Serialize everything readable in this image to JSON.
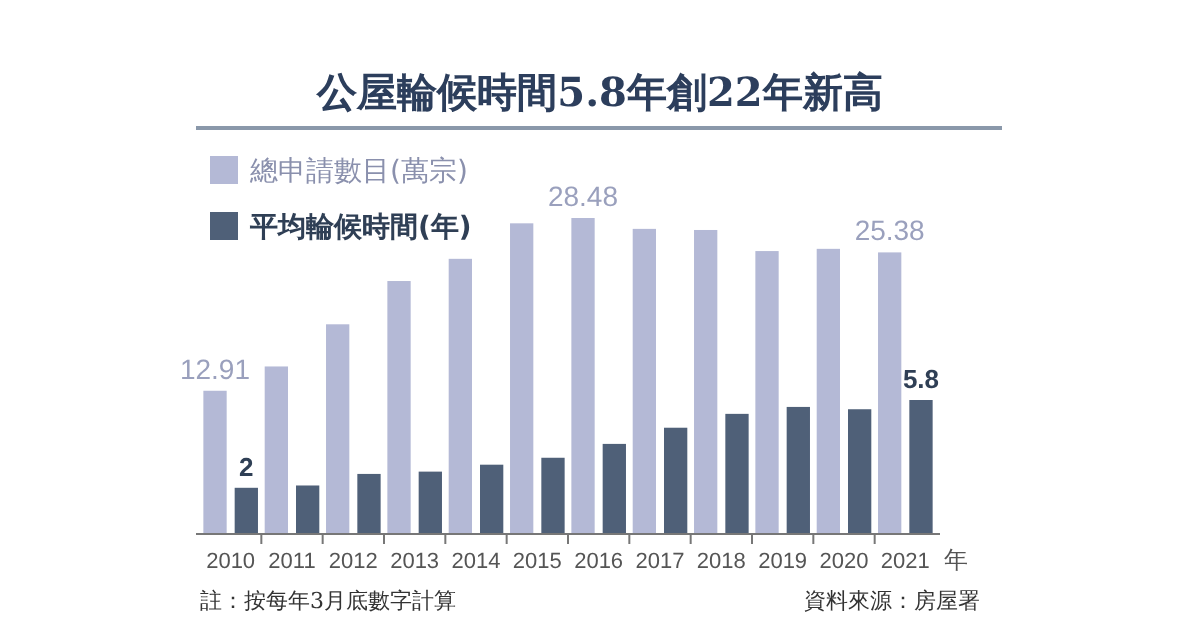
{
  "chart_data": {
    "type": "bar",
    "title": "公屋輪候時間5.8年創22年新高",
    "xlabel": "年",
    "categories": [
      "2010",
      "2011",
      "2012",
      "2013",
      "2014",
      "2015",
      "2016",
      "2017",
      "2018",
      "2019",
      "2020",
      "2021"
    ],
    "series": [
      {
        "name": "總申請數目(萬宗)",
        "color": "#b4b9d6",
        "values": [
          12.91,
          15.1,
          18.9,
          22.8,
          24.8,
          28.0,
          28.48,
          27.5,
          27.4,
          25.5,
          25.7,
          25.38
        ],
        "value_labels": [
          "12.91",
          null,
          null,
          null,
          null,
          null,
          "28.48",
          null,
          null,
          null,
          null,
          "25.38"
        ]
      },
      {
        "name": "平均輪候時間(年)",
        "color": "#4f6078",
        "axis": "y2",
        "values": [
          2,
          2.1,
          2.6,
          2.7,
          3.0,
          3.3,
          3.9,
          4.6,
          5.2,
          5.5,
          5.4,
          5.8
        ],
        "value_labels": [
          "2",
          null,
          null,
          null,
          null,
          null,
          null,
          null,
          null,
          null,
          null,
          "5.8"
        ]
      }
    ],
    "tick_labels": "x",
    "legend": "top left",
    "annotations": [
      "註：按每年3月底數字計算",
      "資料來源：房屋署"
    ]
  }
}
